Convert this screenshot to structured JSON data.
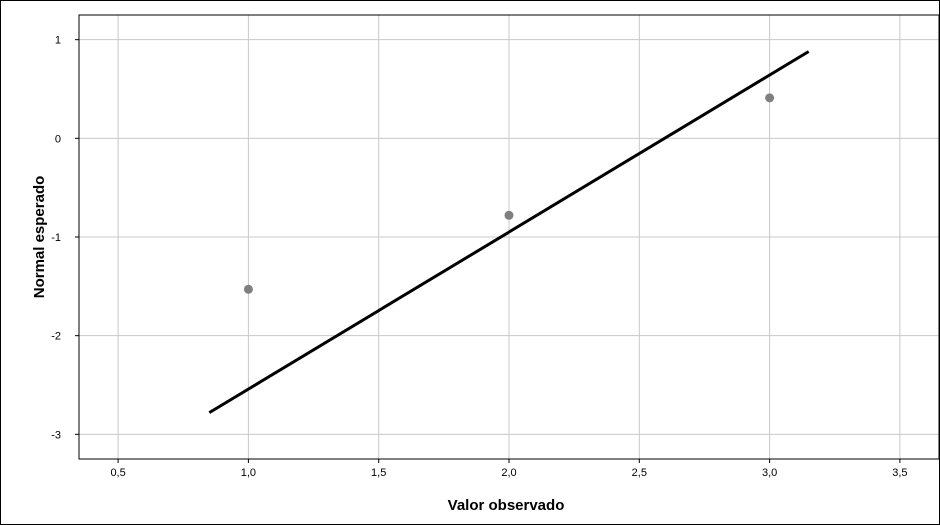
{
  "chart_data": {
    "type": "scatter",
    "title": "",
    "xlabel": "Valor observado",
    "ylabel": "Normal esperado",
    "xlim": [
      0.35,
      3.65
    ],
    "ylim": [
      -3.25,
      1.25
    ],
    "x_ticks": [
      0.5,
      1.0,
      1.5,
      2.0,
      2.5,
      3.0,
      3.5
    ],
    "x_tick_labels": [
      "0,5",
      "1,0",
      "1,5",
      "2,0",
      "2,5",
      "3,0",
      "3,5"
    ],
    "y_ticks": [
      1,
      0,
      -1,
      -2,
      -3
    ],
    "y_tick_labels": [
      "1",
      "0",
      "-1",
      "-2",
      "-3"
    ],
    "grid": true,
    "series": [
      {
        "type": "scatter",
        "x": [
          1.0,
          2.0,
          3.0
        ],
        "y": [
          -1.53,
          -0.78,
          0.41
        ],
        "color": "#7f7f7f"
      },
      {
        "type": "line",
        "x": [
          0.85,
          3.15
        ],
        "y": [
          -2.78,
          0.88
        ],
        "color": "#000000"
      }
    ]
  }
}
